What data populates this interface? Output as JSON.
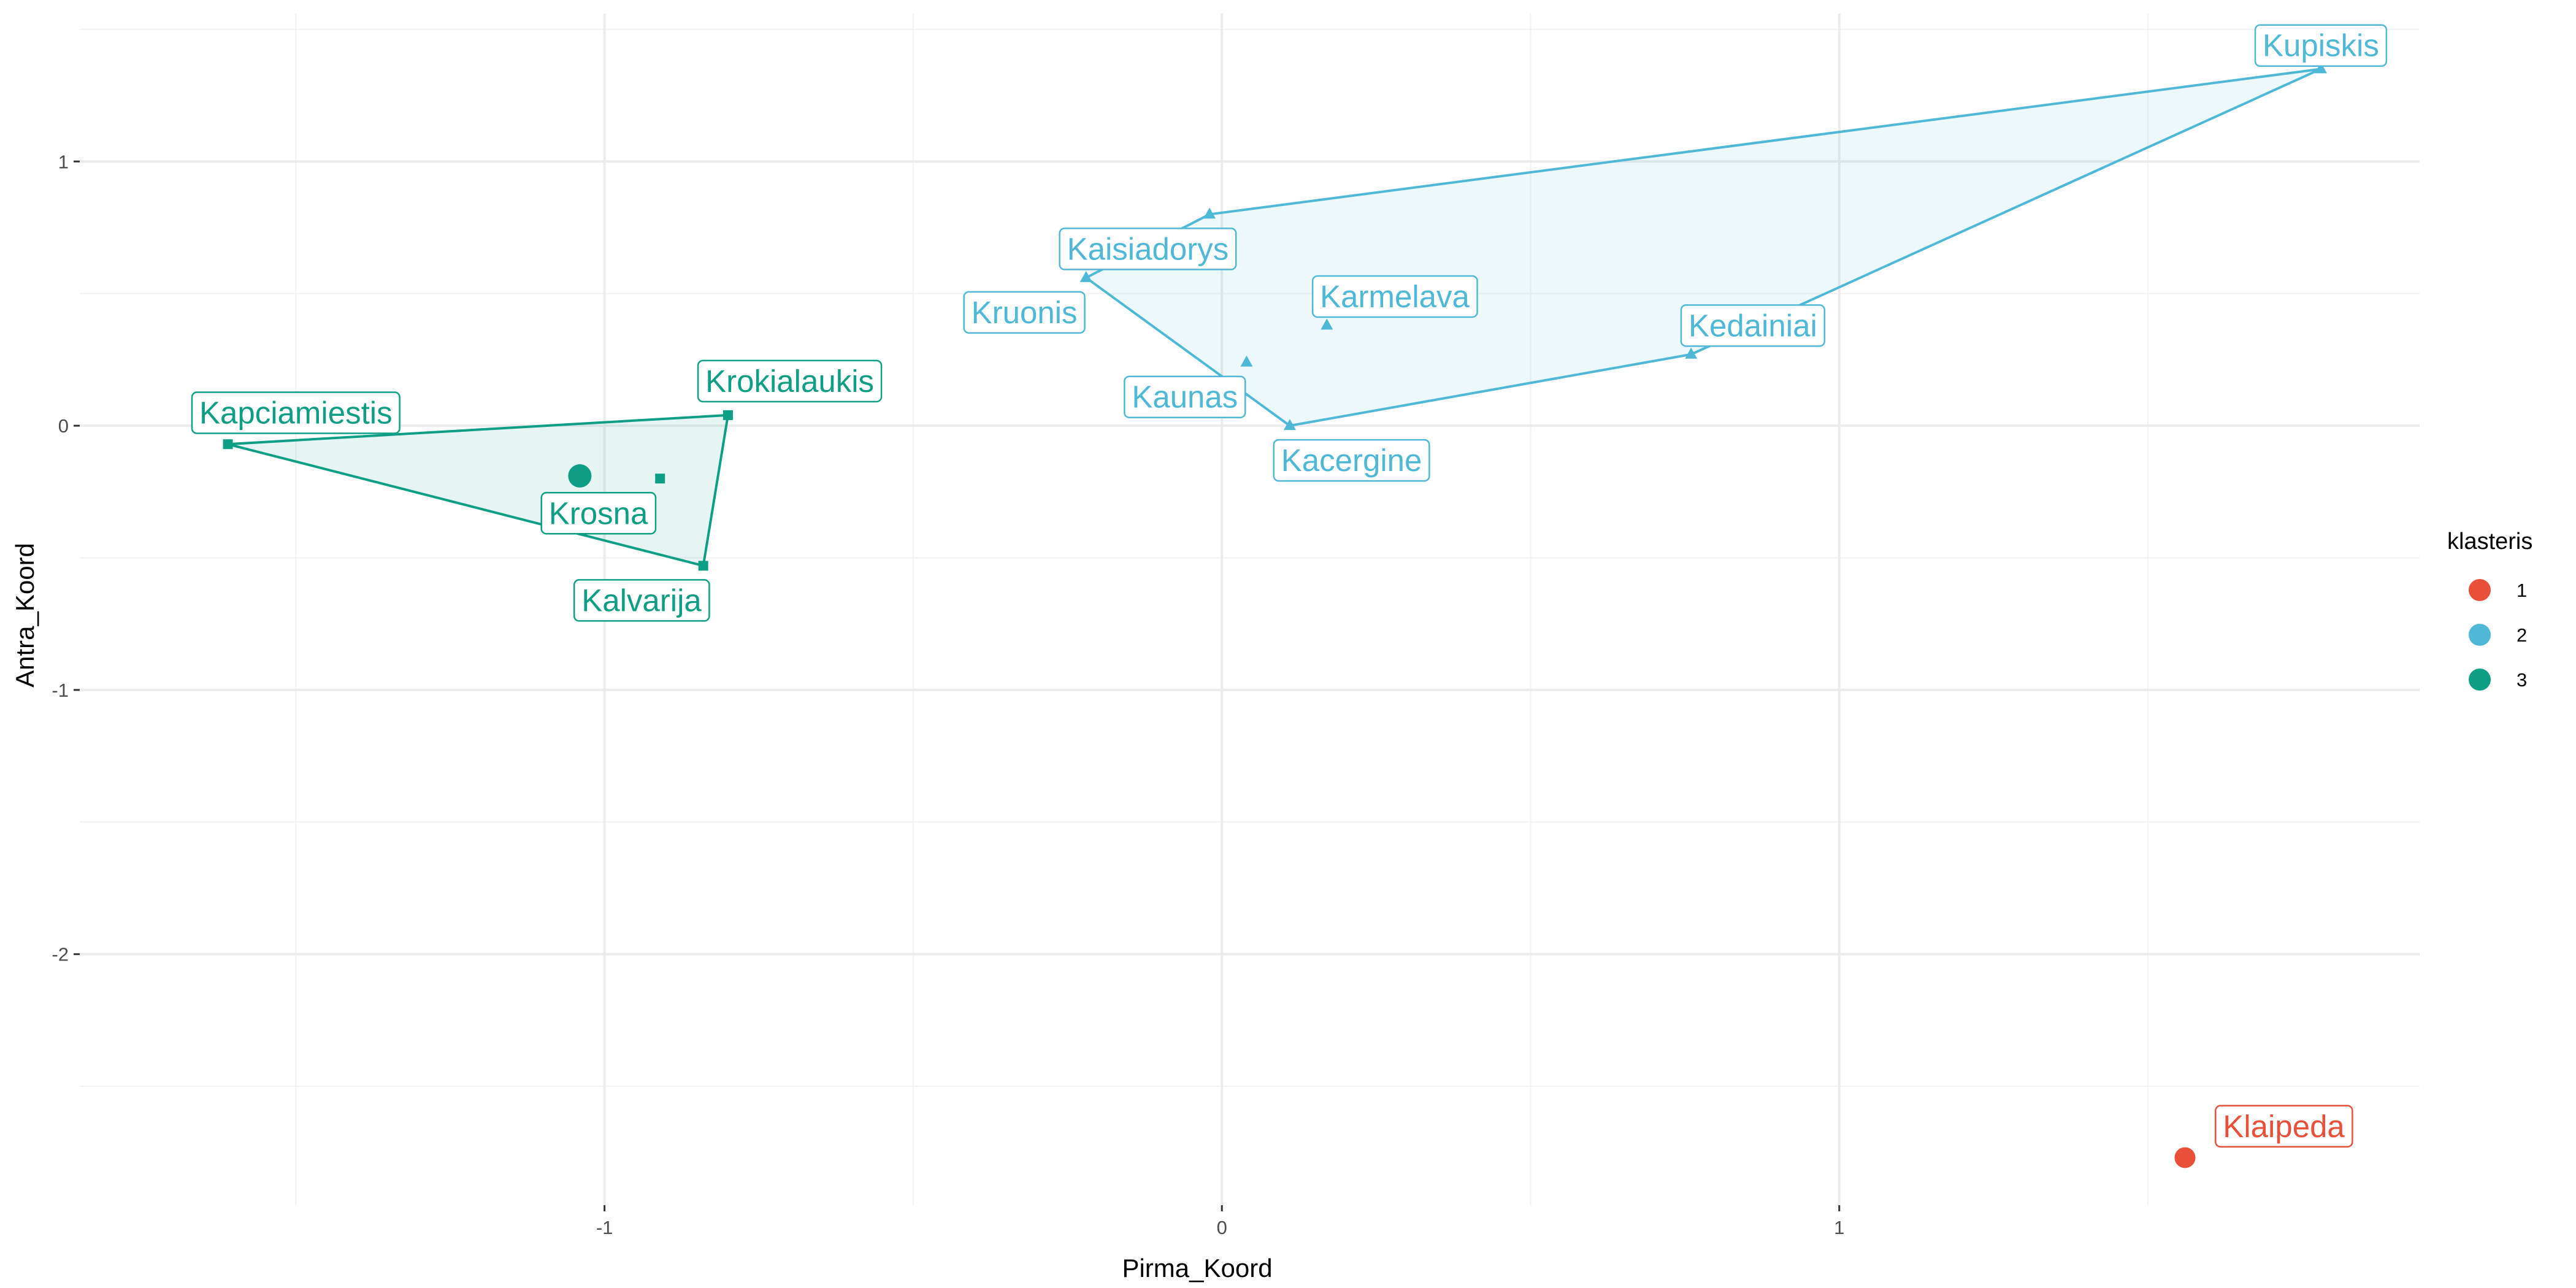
{
  "chart_data": {
    "type": "scatter",
    "xlabel": "Pirma_Koord",
    "ylabel": "Antra_Koord",
    "xlim": [
      -1.85,
      1.94
    ],
    "ylim": [
      -2.95,
      1.56
    ],
    "x_ticks": [
      -1,
      0,
      1
    ],
    "y_ticks": [
      -2,
      -1,
      0,
      1
    ],
    "x_tick_labels": [
      "-1",
      "0",
      "1"
    ],
    "y_tick_labels": [
      "-2",
      "-1",
      "0",
      "1"
    ],
    "grid": true,
    "legend": {
      "title": "klasteris",
      "position": "right",
      "entries": [
        {
          "label": "1",
          "color": "#E8503A"
        },
        {
          "label": "2",
          "color": "#4FB8D6"
        },
        {
          "label": "3",
          "color": "#0E9E85"
        }
      ]
    },
    "clusters": [
      {
        "id": "1",
        "color": "#E8503A",
        "centroid": {
          "x": 1.56,
          "y": -2.77
        },
        "points": [
          {
            "label": "Klaipeda",
            "x": 1.56,
            "y": -2.77,
            "label_x": 1.72,
            "label_y": -2.65
          }
        ],
        "hull": []
      },
      {
        "id": "2",
        "color": "#4FB8D6",
        "centroid": {
          "x": 0.37,
          "y": 0.51
        },
        "points": [
          {
            "label": "Kupiskis",
            "x": 1.78,
            "y": 1.35,
            "label_x": 1.78,
            "label_y": 1.44
          },
          {
            "label": "Kaisiadorys",
            "x": -0.02,
            "y": 0.8,
            "label_x": -0.12,
            "label_y": 0.67
          },
          {
            "label": "Kruonis",
            "x": -0.22,
            "y": 0.56,
            "label_x": -0.32,
            "label_y": 0.43
          },
          {
            "label": "Karmelava",
            "x": 0.17,
            "y": 0.38,
            "label_x": 0.28,
            "label_y": 0.49
          },
          {
            "label": "Kedainiai",
            "x": 0.76,
            "y": 0.27,
            "label_x": 0.86,
            "label_y": 0.38
          },
          {
            "label": "Kaunas",
            "x": 0.04,
            "y": 0.24,
            "label_x": -0.06,
            "label_y": 0.11
          },
          {
            "label": "Kacergine",
            "x": 0.11,
            "y": 0.0,
            "label_x": 0.21,
            "label_y": -0.13
          }
        ],
        "hull": [
          "Kupiskis",
          "Kaisiadorys",
          "Kruonis",
          "Kacergine",
          "Kedainiai"
        ]
      },
      {
        "id": "3",
        "color": "#0E9E85",
        "centroid": {
          "x": -1.04,
          "y": -0.19
        },
        "points": [
          {
            "label": "Krokialaukis",
            "x": -0.8,
            "y": 0.04,
            "label_x": -0.7,
            "label_y": 0.17
          },
          {
            "label": "Kapciamiestis",
            "x": -1.61,
            "y": -0.07,
            "label_x": -1.5,
            "label_y": 0.05
          },
          {
            "label": "Krosna",
            "x": -0.91,
            "y": -0.2,
            "label_x": -1.01,
            "label_y": -0.33
          },
          {
            "label": "Kalvarija",
            "x": -0.84,
            "y": -0.53,
            "label_x": -0.94,
            "label_y": -0.66
          }
        ],
        "hull": [
          "Kapciamiestis",
          "Krokialaukis",
          "Kalvarija"
        ]
      }
    ]
  }
}
